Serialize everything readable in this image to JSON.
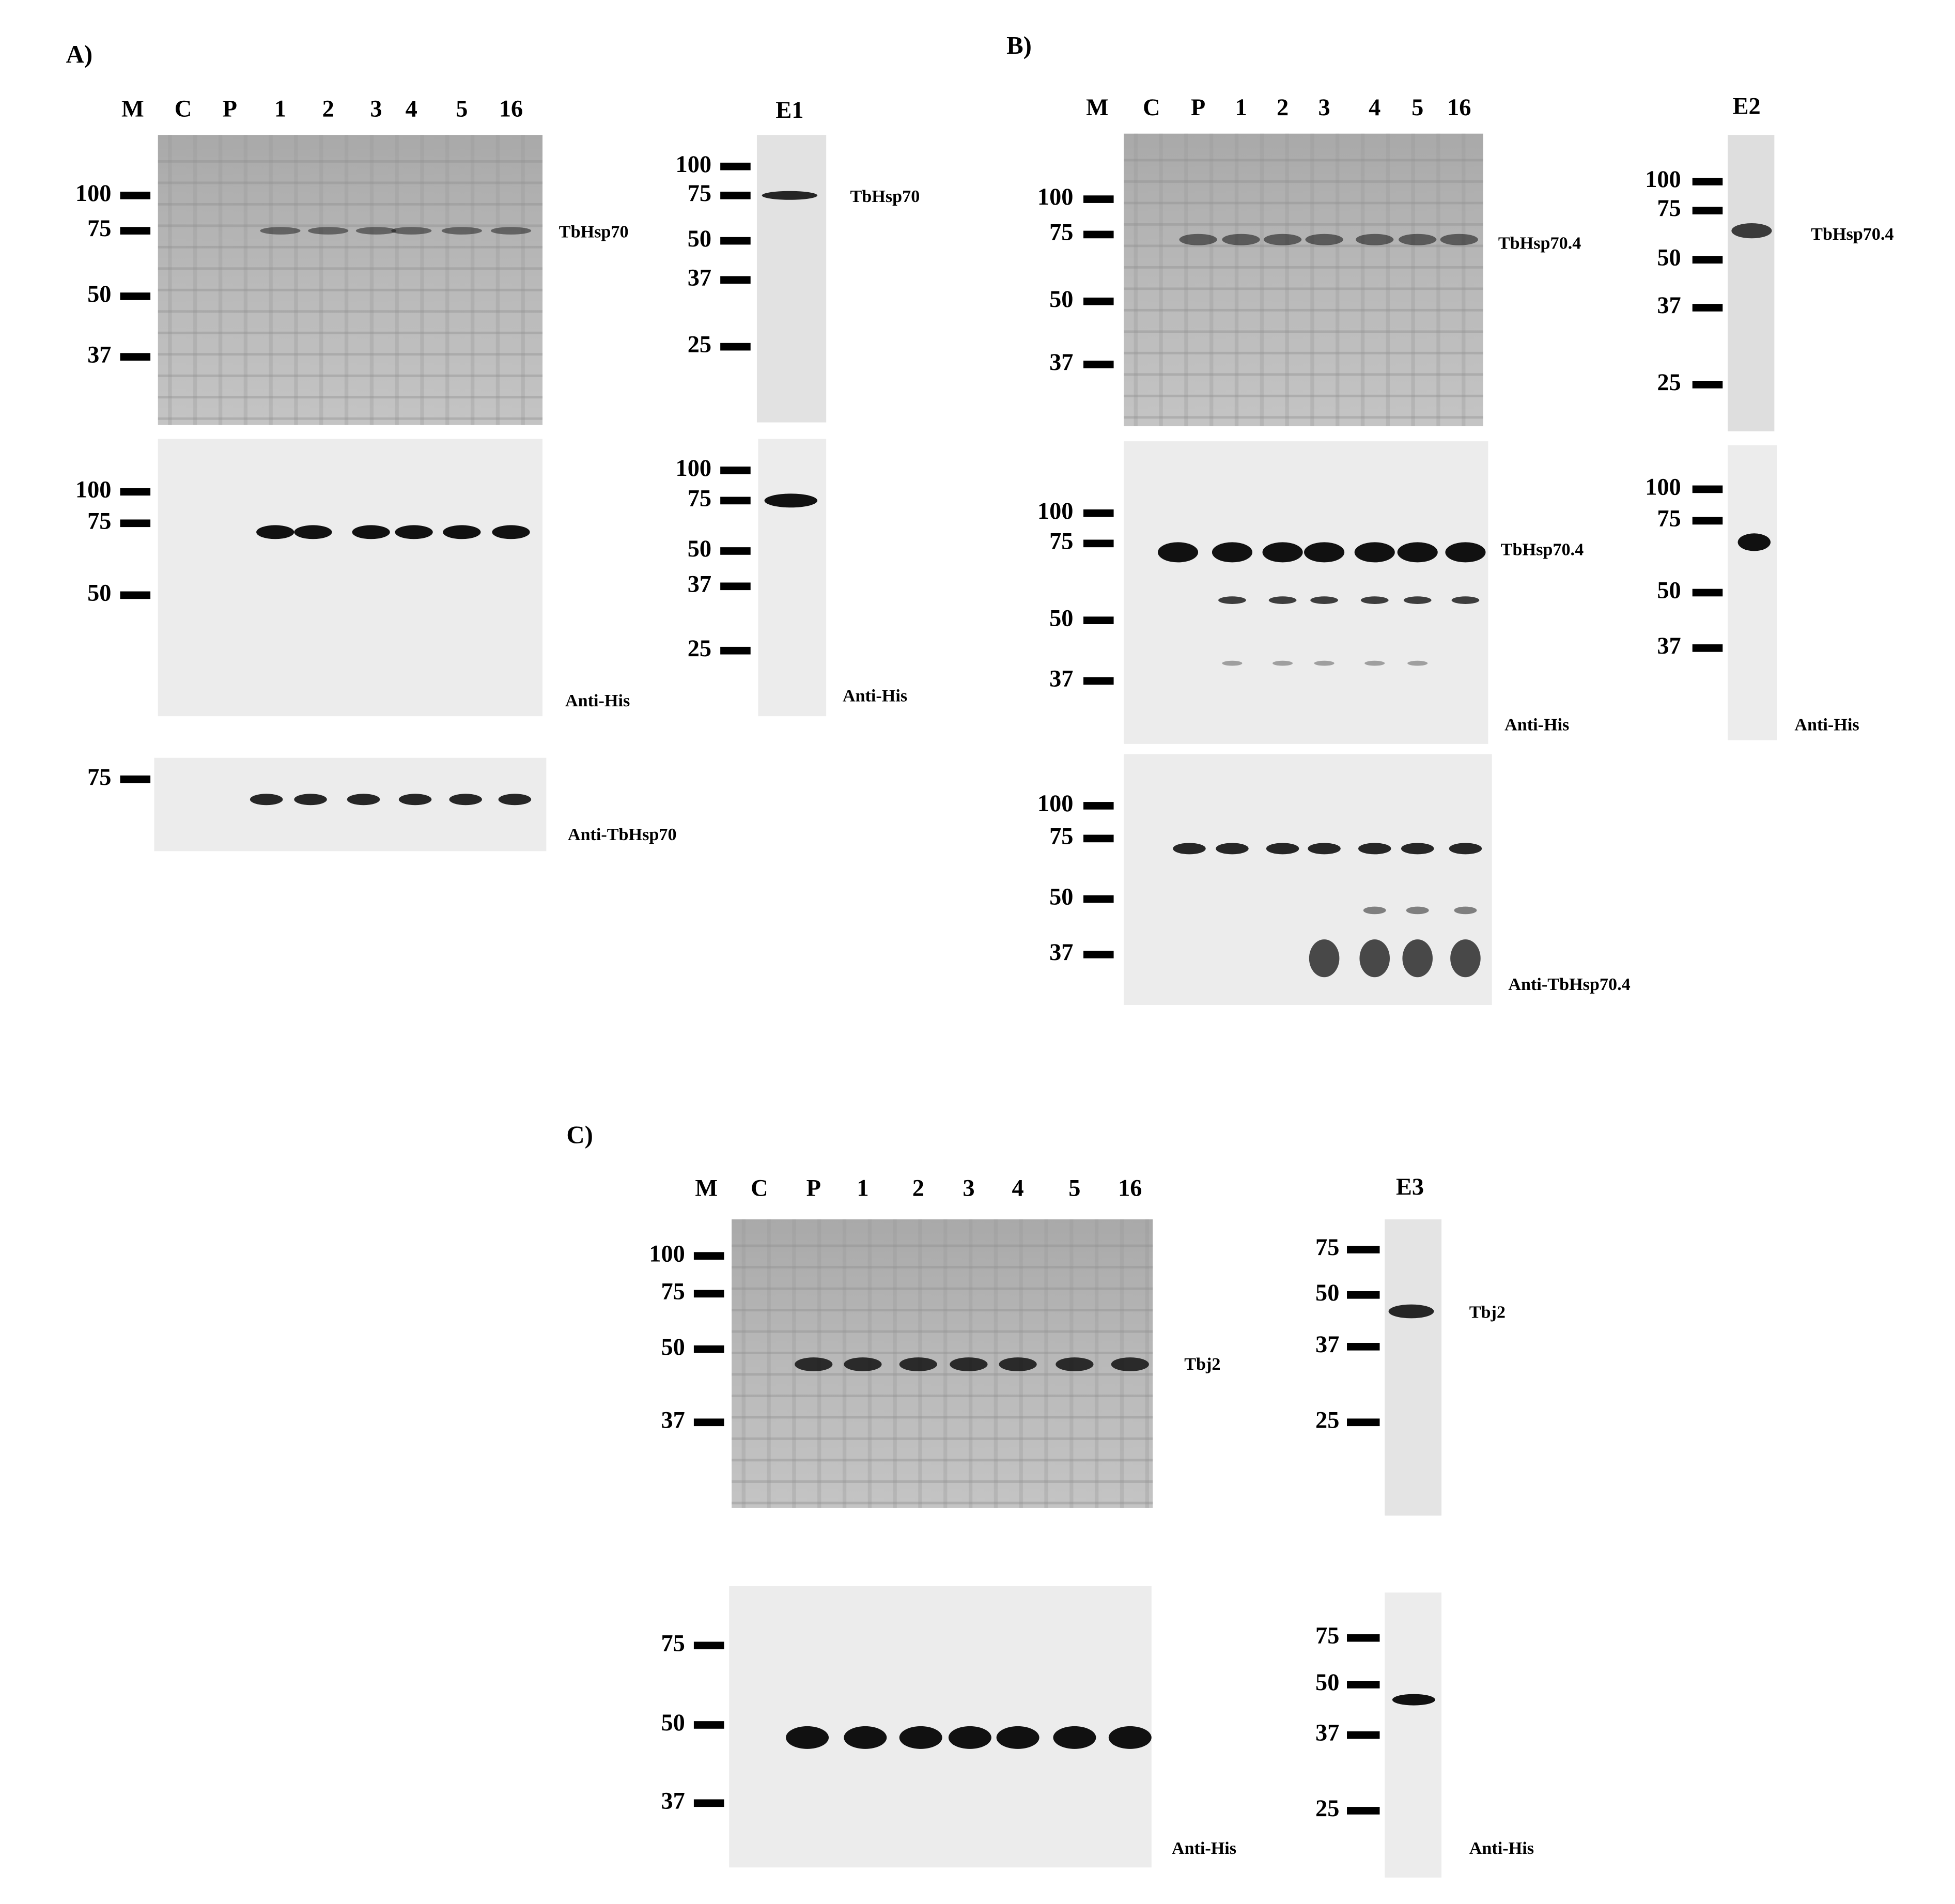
{
  "panels": [
    {
      "label": "A)",
      "lanes": [
        "M",
        "C",
        "P",
        "1",
        "2",
        "3",
        "4",
        "5",
        "16"
      ],
      "blots": [
        {
          "markers": [
            "100",
            "75",
            "50",
            "37"
          ],
          "labels": [
            "TbHsp70"
          ]
        },
        {
          "markers": [
            "100",
            "75",
            "50"
          ],
          "labels": [
            "Anti-His"
          ]
        },
        {
          "markers": [
            "75"
          ],
          "labels": [
            "Anti-TbHsp70"
          ]
        }
      ],
      "elution": {
        "label": "E1",
        "blots": [
          {
            "markers": [
              "100",
              "75",
              "50",
              "37",
              "25"
            ],
            "labels": [
              "TbHsp70"
            ]
          },
          {
            "markers": [
              "100",
              "75",
              "50",
              "37",
              "25"
            ],
            "labels": [
              "Anti-His"
            ]
          }
        ]
      }
    },
    {
      "label": "B)",
      "lanes": [
        "M",
        "C",
        "P",
        "1",
        "2",
        "3",
        "4",
        "5",
        "16"
      ],
      "blots": [
        {
          "markers": [
            "100",
            "75",
            "50",
            "37"
          ],
          "labels": [
            "TbHsp70.4"
          ]
        },
        {
          "markers": [
            "100",
            "75",
            "50",
            "37"
          ],
          "labels": [
            "TbHsp70.4",
            "Anti-His"
          ]
        },
        {
          "markers": [
            "100",
            "75",
            "50",
            "37"
          ],
          "labels": [
            "Anti-TbHsp70.4"
          ]
        }
      ],
      "elution": {
        "label": "E2",
        "blots": [
          {
            "markers": [
              "100",
              "75",
              "50",
              "37",
              "25"
            ],
            "labels": [
              "TbHsp70.4"
            ]
          },
          {
            "markers": [
              "100",
              "75",
              "50",
              "37"
            ],
            "labels": [
              "Anti-His"
            ]
          }
        ]
      }
    },
    {
      "label": "C)",
      "lanes": [
        "M",
        "C",
        "P",
        "1",
        "2",
        "3",
        "4",
        "5",
        "16"
      ],
      "blots": [
        {
          "markers": [
            "100",
            "75",
            "50",
            "37"
          ],
          "labels": [
            "Tbj2"
          ]
        },
        {
          "markers": [
            "75",
            "50",
            "37"
          ],
          "labels": [
            "Anti-His"
          ]
        }
      ],
      "elution": {
        "label": "E3",
        "blots": [
          {
            "markers": [
              "75",
              "50",
              "37",
              "25"
            ],
            "labels": [
              "Tbj2"
            ]
          },
          {
            "markers": [
              "75",
              "50",
              "37",
              "25"
            ],
            "labels": [
              "Anti-His"
            ]
          }
        ]
      }
    }
  ]
}
